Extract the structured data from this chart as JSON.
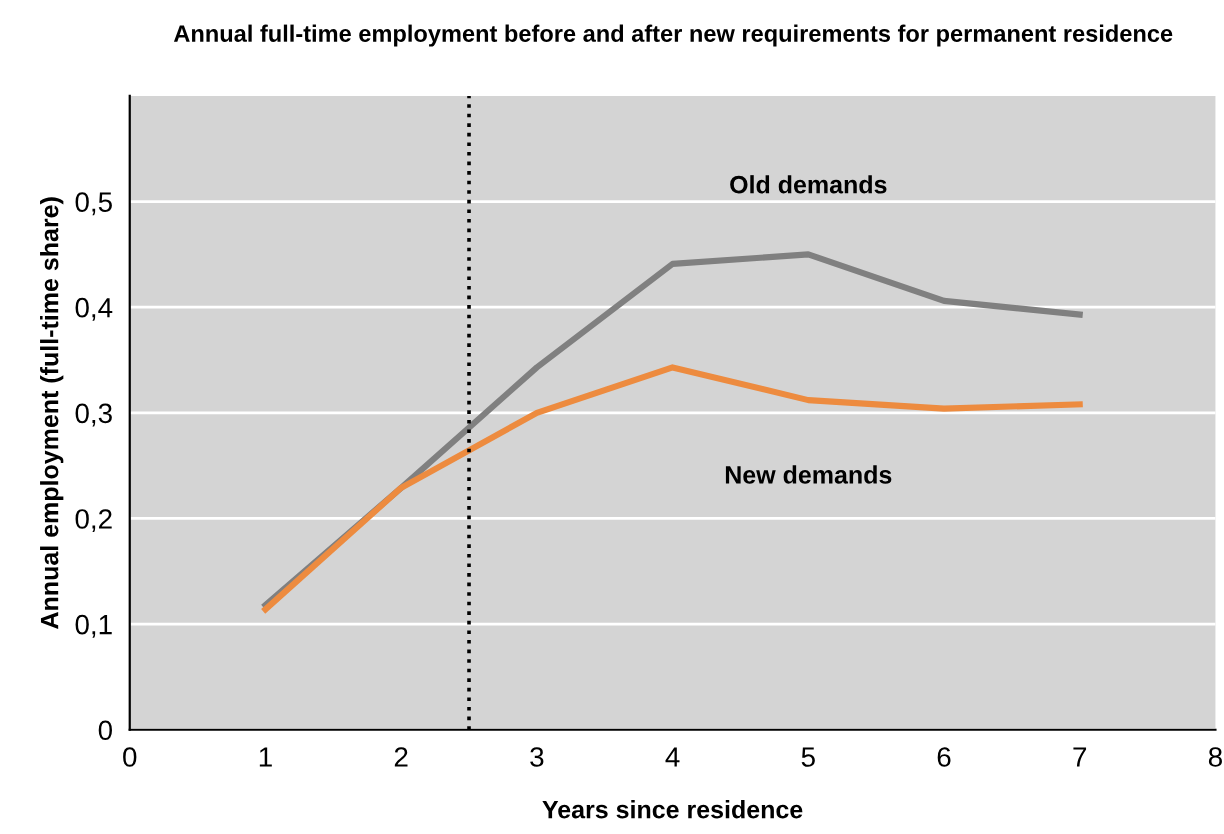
{
  "chart_data": {
    "type": "line",
    "title": "Annual full-time employment before and after new requirements for permanent residence",
    "xlabel": "Years since residence",
    "ylabel": "Annual employment (full-time share)",
    "x": [
      1,
      2,
      3,
      4,
      5,
      6,
      7
    ],
    "series": [
      {
        "name": "Old demands",
        "color": "#808080",
        "values": [
          0.118,
          0.229,
          0.343,
          0.441,
          0.45,
          0.406,
          0.393
        ]
      },
      {
        "name": "New demands",
        "color": "#ed8b3f",
        "values": [
          0.114,
          0.229,
          0.3,
          0.343,
          0.312,
          0.304,
          0.308
        ]
      }
    ],
    "xlim": [
      0,
      8
    ],
    "ylim": [
      0,
      0.6
    ],
    "xticks": [
      0,
      1,
      2,
      3,
      4,
      5,
      6,
      7,
      8
    ],
    "yticks": [
      {
        "value": 0,
        "label": "0"
      },
      {
        "value": 0.1,
        "label": "0,1"
      },
      {
        "value": 0.2,
        "label": "0,2"
      },
      {
        "value": 0.3,
        "label": "0,3"
      },
      {
        "value": 0.4,
        "label": "0,4"
      },
      {
        "value": 0.5,
        "label": "0,5"
      }
    ],
    "ref_lines": [
      {
        "axis": "x",
        "value": 2.5,
        "label": null,
        "color": "#000000",
        "line_style": "dotted"
      }
    ],
    "grid": "y",
    "legend": false,
    "marker": "none",
    "line_style": "solid"
  }
}
